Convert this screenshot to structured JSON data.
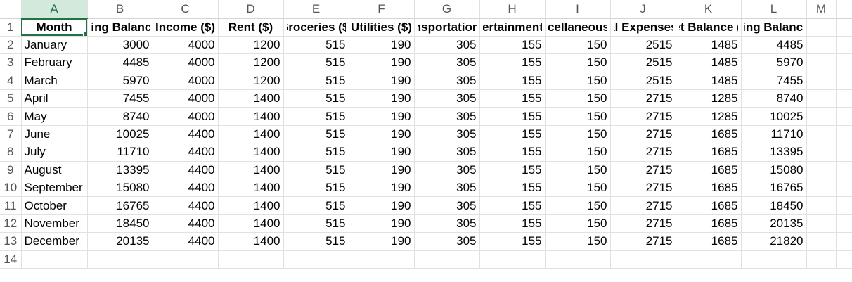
{
  "columns": [
    "A",
    "B",
    "C",
    "D",
    "E",
    "F",
    "G",
    "H",
    "I",
    "J",
    "K",
    "L",
    "M"
  ],
  "rows": [
    "1",
    "2",
    "3",
    "4",
    "5",
    "6",
    "7",
    "8",
    "9",
    "10",
    "11",
    "12",
    "13",
    "14"
  ],
  "headers": [
    "Month",
    "Starting Balance ($)",
    "Income ($)",
    "Rent ($)",
    "Groceries ($)",
    "Utilities ($)",
    "Transportation ($)",
    "Entertainment ($)",
    "Miscellaneous ($)",
    "Total Expenses ($)",
    "Net Balance ($)",
    "Ending Balance ($)"
  ],
  "data": [
    [
      "January",
      "3000",
      "4000",
      "1200",
      "515",
      "190",
      "305",
      "155",
      "150",
      "2515",
      "1485",
      "4485"
    ],
    [
      "February",
      "4485",
      "4000",
      "1200",
      "515",
      "190",
      "305",
      "155",
      "150",
      "2515",
      "1485",
      "5970"
    ],
    [
      "March",
      "5970",
      "4000",
      "1200",
      "515",
      "190",
      "305",
      "155",
      "150",
      "2515",
      "1485",
      "7455"
    ],
    [
      "April",
      "7455",
      "4000",
      "1400",
      "515",
      "190",
      "305",
      "155",
      "150",
      "2715",
      "1285",
      "8740"
    ],
    [
      "May",
      "8740",
      "4000",
      "1400",
      "515",
      "190",
      "305",
      "155",
      "150",
      "2715",
      "1285",
      "10025"
    ],
    [
      "June",
      "10025",
      "4400",
      "1400",
      "515",
      "190",
      "305",
      "155",
      "150",
      "2715",
      "1685",
      "11710"
    ],
    [
      "July",
      "11710",
      "4400",
      "1400",
      "515",
      "190",
      "305",
      "155",
      "150",
      "2715",
      "1685",
      "13395"
    ],
    [
      "August",
      "13395",
      "4400",
      "1400",
      "515",
      "190",
      "305",
      "155",
      "150",
      "2715",
      "1685",
      "15080"
    ],
    [
      "September",
      "15080",
      "4400",
      "1400",
      "515",
      "190",
      "305",
      "155",
      "150",
      "2715",
      "1685",
      "16765"
    ],
    [
      "October",
      "16765",
      "4400",
      "1400",
      "515",
      "190",
      "305",
      "155",
      "150",
      "2715",
      "1685",
      "18450"
    ],
    [
      "November",
      "18450",
      "4400",
      "1400",
      "515",
      "190",
      "305",
      "155",
      "150",
      "2715",
      "1685",
      "20135"
    ],
    [
      "December",
      "20135",
      "4400",
      "1400",
      "515",
      "190",
      "305",
      "155",
      "150",
      "2715",
      "1685",
      "21820"
    ]
  ],
  "selected_cell": "A1",
  "accent_color": "#217346"
}
